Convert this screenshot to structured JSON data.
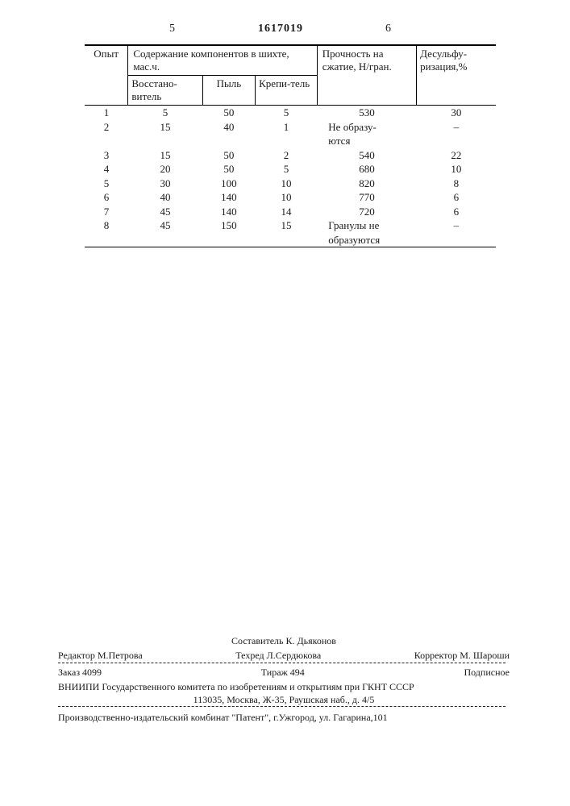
{
  "page_left": "5",
  "doc_number": "1617019",
  "page_right": "6",
  "table": {
    "headers": {
      "opyt": "Опыт",
      "group": "Содержание компонентов в шихте, мас.ч.",
      "strength": "Прочность на сжатие, Н/гран.",
      "desulf": "Десульфу-ризация,%",
      "sub1": "Восстано-витель",
      "sub2": "Пыль",
      "sub3": "Крепи-тель"
    },
    "rows": [
      {
        "n": "1",
        "a": "5",
        "b": "50",
        "c": "5",
        "d": "530",
        "e": "30"
      },
      {
        "n": "2",
        "a": "15",
        "b": "40",
        "c": "1",
        "d": "Не образу-\nются",
        "e": "–"
      },
      {
        "n": "3",
        "a": "15",
        "b": "50",
        "c": "2",
        "d": "540",
        "e": "22"
      },
      {
        "n": "4",
        "a": "20",
        "b": "50",
        "c": "5",
        "d": "680",
        "e": "10"
      },
      {
        "n": "5",
        "a": "30",
        "b": "100",
        "c": "10",
        "d": "820",
        "e": "8"
      },
      {
        "n": "6",
        "a": "40",
        "b": "140",
        "c": "10",
        "d": "770",
        "e": "6"
      },
      {
        "n": "7",
        "a": "45",
        "b": "140",
        "c": "14",
        "d": "720",
        "e": "6"
      },
      {
        "n": "8",
        "a": "45",
        "b": "150",
        "c": "15",
        "d": "Гранулы не\nобразуются",
        "e": "–"
      }
    ]
  },
  "footer": {
    "compiler": "Составитель К. Дьяконов",
    "editor": "Редактор М.Петрова",
    "tech": "Техред Л.Сердюкова",
    "corrector": "Корректор М. Шароши",
    "order": "Заказ 4099",
    "print_run": "Тираж 494",
    "subscription": "Подписное",
    "org": "ВНИИПИ Государственного комитета по изобретениям и открытиям при ГКНТ СССР",
    "address": "113035, Москва, Ж-35, Раушская наб., д. 4/5",
    "printer": "Производственно-издательский комбинат \"Патент\", г.Ужгород, ул. Гагарина,101"
  }
}
